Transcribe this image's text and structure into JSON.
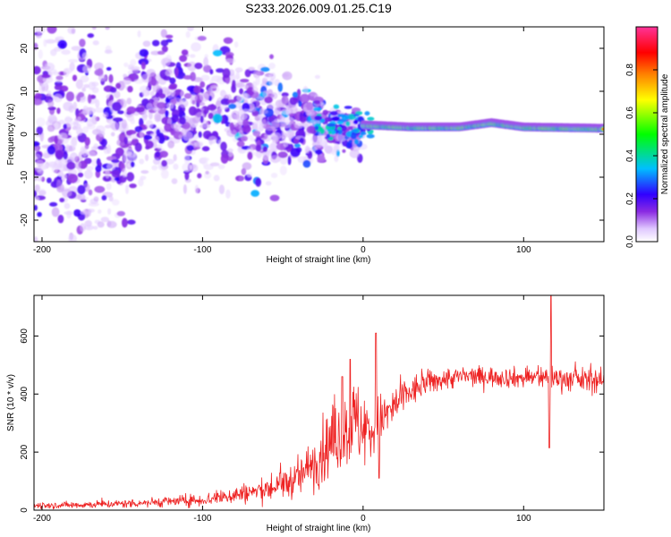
{
  "title": "S233.2026.009.01.25.C19",
  "chart_data": [
    {
      "type": "heatmap",
      "xlabel": "Height of straight line (km)",
      "ylabel": "Frequency (Hz)",
      "xlim": [
        -205,
        150
      ],
      "ylim": [
        -25,
        25
      ],
      "x_ticks": [
        -200,
        -100,
        0,
        100
      ],
      "y_ticks": [
        -20,
        -10,
        0,
        10,
        20
      ],
      "description_of_data": {
        "ridge_x_start": 0,
        "ridge_frequency": [
          [
            0,
            2
          ],
          [
            30,
            1.5
          ],
          [
            60,
            1.5
          ],
          [
            80,
            2.5
          ],
          [
            100,
            1.5
          ],
          [
            150,
            1.2
          ]
        ]
      },
      "colorbar": {
        "label": "Normalized spectral amplitude",
        "range": [
          0,
          1
        ],
        "ticks": [
          0.0,
          0.2,
          0.4,
          0.6,
          0.8
        ],
        "tick_labels": [
          "0.0",
          "0.2",
          "0.4",
          "0.6",
          "0.8"
        ],
        "colormap": [
          "#ffffff",
          "#e0c8ff",
          "#8a2be2",
          "#3000ff",
          "#00bfff",
          "#00ff00",
          "#ffff00",
          "#ff8000",
          "#ff0000",
          "#ff3399"
        ]
      }
    },
    {
      "type": "line",
      "xlabel": "Height of straight line (km)",
      "ylabel": "SNR (10 * v/v)",
      "xlim": [
        -205,
        150
      ],
      "ylim": [
        0,
        740
      ],
      "x_ticks": [
        -200,
        -100,
        0,
        100
      ],
      "y_ticks": [
        0,
        200,
        400,
        600
      ],
      "color": "#ee2222",
      "envelope": {
        "x": [
          -205,
          -150,
          -100,
          -60,
          -40,
          -25,
          -15,
          -5,
          5,
          15,
          25,
          40,
          60,
          80,
          100,
          115,
          130,
          150
        ],
        "mean": [
          15,
          22,
          35,
          70,
          110,
          200,
          260,
          300,
          270,
          330,
          390,
          440,
          460,
          460,
          455,
          460,
          450,
          445
        ],
        "spread": [
          8,
          10,
          15,
          30,
          45,
          80,
          90,
          110,
          80,
          60,
          45,
          30,
          25,
          25,
          25,
          30,
          30,
          30
        ]
      },
      "spikes": [
        {
          "x": -13,
          "value": 460
        },
        {
          "x": -8,
          "value": 520
        },
        {
          "x": 8,
          "value": 610
        },
        {
          "x": 117,
          "value": 740
        },
        {
          "x": 116,
          "value": 215
        },
        {
          "x": 10,
          "value": 110
        }
      ]
    }
  ]
}
